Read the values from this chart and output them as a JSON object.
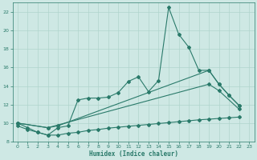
{
  "xlabel": "Humidex (Indice chaleur)",
  "xlim": [
    -0.5,
    23.5
  ],
  "ylim": [
    8,
    23
  ],
  "yticks": [
    8,
    10,
    12,
    14,
    16,
    18,
    20,
    22
  ],
  "xticks": [
    0,
    1,
    2,
    3,
    4,
    5,
    6,
    7,
    8,
    9,
    10,
    11,
    12,
    13,
    14,
    15,
    16,
    17,
    18,
    19,
    20,
    21,
    22,
    23
  ],
  "background_color": "#cee8e4",
  "grid_color": "#b0d4cc",
  "line_color": "#2a7a6a",
  "series1_x": [
    0,
    1,
    2,
    3,
    4,
    5,
    6,
    7,
    8,
    9,
    10,
    11,
    12,
    13,
    14,
    15,
    16,
    17,
    18,
    19,
    20,
    21,
    22
  ],
  "series1_y": [
    10.0,
    9.5,
    9.0,
    8.7,
    9.5,
    9.7,
    12.5,
    12.7,
    12.7,
    12.8,
    13.3,
    14.5,
    15.0,
    13.4,
    14.6,
    22.5,
    19.6,
    18.2,
    15.7,
    15.7,
    14.2,
    13.0,
    11.9
  ],
  "series2_x": [
    0,
    3,
    4,
    19,
    20,
    21,
    22
  ],
  "series2_y": [
    10.0,
    9.5,
    9.7,
    15.7,
    14.2,
    13.0,
    11.9
  ],
  "series3_x": [
    0,
    3,
    19,
    20,
    22
  ],
  "series3_y": [
    10.0,
    9.5,
    14.2,
    13.5,
    11.5
  ],
  "series4_x": [
    0,
    1,
    2,
    3,
    4,
    5,
    6,
    7,
    8,
    9,
    10,
    11,
    12,
    13,
    14,
    15,
    16,
    17,
    18,
    19,
    20,
    21,
    22
  ],
  "series4_y": [
    9.7,
    9.3,
    9.0,
    8.7,
    8.7,
    8.9,
    9.0,
    9.2,
    9.3,
    9.45,
    9.55,
    9.65,
    9.75,
    9.85,
    9.95,
    10.05,
    10.15,
    10.25,
    10.35,
    10.42,
    10.5,
    10.57,
    10.65
  ]
}
